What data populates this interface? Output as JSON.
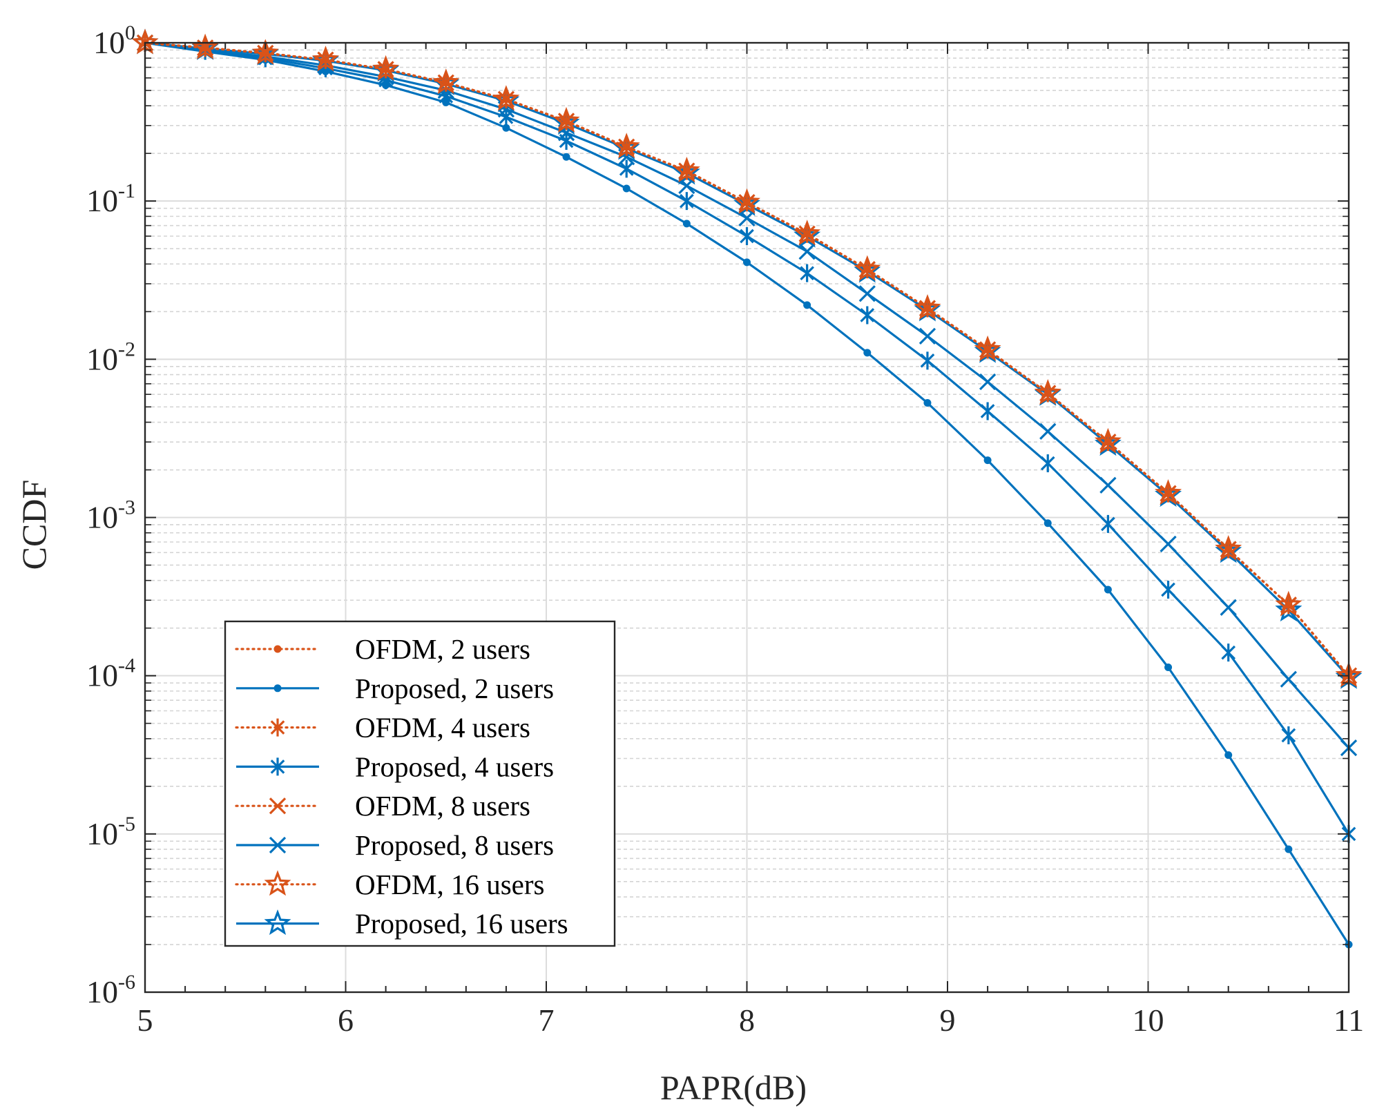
{
  "chart_data": {
    "type": "line",
    "title": "",
    "xlabel": "PAPR(dB)",
    "ylabel": "CCDF",
    "xlim": [
      5,
      11
    ],
    "ylim": [
      1e-06,
      1
    ],
    "yscale": "log",
    "grid": true,
    "minor_grid": true,
    "legend_position": "bottom-left",
    "x_ticks": [
      {
        "value": 5,
        "label": "5"
      },
      {
        "value": 6,
        "label": "6"
      },
      {
        "value": 7,
        "label": "7"
      },
      {
        "value": 8,
        "label": "8"
      },
      {
        "value": 9,
        "label": "9"
      },
      {
        "value": 10,
        "label": "10"
      },
      {
        "value": 11,
        "label": "11"
      }
    ],
    "y_ticks": [
      {
        "value": 1,
        "base": "10",
        "exp": "0"
      },
      {
        "value": 0.1,
        "base": "10",
        "exp": "-1"
      },
      {
        "value": 0.01,
        "base": "10",
        "exp": "-2"
      },
      {
        "value": 0.001,
        "base": "10",
        "exp": "-3"
      },
      {
        "value": 0.0001,
        "base": "10",
        "exp": "-4"
      },
      {
        "value": 1e-05,
        "base": "10",
        "exp": "-5"
      },
      {
        "value": 1e-06,
        "base": "10",
        "exp": "-6"
      }
    ],
    "x": [
      5.0,
      5.3,
      5.6,
      5.9,
      6.2,
      6.5,
      6.8,
      7.1,
      7.4,
      7.7,
      8.0,
      8.3,
      8.6,
      8.9,
      9.2,
      9.5,
      9.8,
      10.1,
      10.4,
      10.7,
      11.0
    ],
    "series": [
      {
        "name": "OFDM, 2 users",
        "color": "#D95319",
        "style": "dotted",
        "marker": "dot",
        "values": [
          1.0,
          0.93,
          0.86,
          0.78,
          0.68,
          0.56,
          0.44,
          0.32,
          0.22,
          0.155,
          0.098,
          0.062,
          0.037,
          0.021,
          0.0115,
          0.0061,
          0.003,
          0.00142,
          0.00063,
          0.00028,
          0.0001
        ]
      },
      {
        "name": "Proposed, 2 users",
        "color": "#0072BD",
        "style": "solid",
        "marker": "dot",
        "values": [
          1.0,
          0.88,
          0.78,
          0.66,
          0.54,
          0.42,
          0.29,
          0.19,
          0.12,
          0.072,
          0.041,
          0.022,
          0.011,
          0.0053,
          0.0023,
          0.00092,
          0.00035,
          0.000113,
          3.15e-05,
          8e-06,
          2e-06
        ]
      },
      {
        "name": "OFDM, 4 users",
        "color": "#D95319",
        "style": "dotted",
        "marker": "asterisk",
        "values": [
          1.0,
          0.93,
          0.86,
          0.78,
          0.68,
          0.56,
          0.44,
          0.32,
          0.22,
          0.155,
          0.098,
          0.062,
          0.037,
          0.021,
          0.0115,
          0.0061,
          0.003,
          0.00142,
          0.00063,
          0.00028,
          0.0001
        ]
      },
      {
        "name": "Proposed, 4 users",
        "color": "#0072BD",
        "style": "solid",
        "marker": "asterisk",
        "values": [
          1.0,
          0.89,
          0.8,
          0.69,
          0.58,
          0.46,
          0.34,
          0.24,
          0.16,
          0.1,
          0.06,
          0.035,
          0.019,
          0.0098,
          0.0047,
          0.0022,
          0.00091,
          0.00035,
          0.00014,
          4.2e-05,
          1e-05
        ]
      },
      {
        "name": "OFDM, 8 users",
        "color": "#D95319",
        "style": "dotted",
        "marker": "cross",
        "values": [
          1.0,
          0.93,
          0.86,
          0.78,
          0.68,
          0.56,
          0.44,
          0.32,
          0.22,
          0.155,
          0.098,
          0.062,
          0.037,
          0.021,
          0.0115,
          0.0061,
          0.003,
          0.00142,
          0.00063,
          0.00028,
          0.0001
        ]
      },
      {
        "name": "Proposed, 8 users",
        "color": "#0072BD",
        "style": "solid",
        "marker": "cross",
        "values": [
          1.0,
          0.9,
          0.82,
          0.72,
          0.61,
          0.5,
          0.38,
          0.27,
          0.19,
          0.125,
          0.078,
          0.048,
          0.026,
          0.014,
          0.0072,
          0.0035,
          0.0016,
          0.00068,
          0.00027,
          9.5e-05,
          3.5e-05
        ]
      },
      {
        "name": "OFDM, 16 users",
        "color": "#D95319",
        "style": "dotted",
        "marker": "star",
        "values": [
          1.0,
          0.93,
          0.86,
          0.78,
          0.68,
          0.56,
          0.44,
          0.32,
          0.22,
          0.155,
          0.098,
          0.062,
          0.037,
          0.021,
          0.0115,
          0.0061,
          0.003,
          0.00142,
          0.00063,
          0.00028,
          0.0001
        ]
      },
      {
        "name": "Proposed, 16 users",
        "color": "#0072BD",
        "style": "solid",
        "marker": "star",
        "values": [
          1.0,
          0.92,
          0.85,
          0.77,
          0.67,
          0.55,
          0.43,
          0.31,
          0.215,
          0.15,
          0.095,
          0.06,
          0.036,
          0.0205,
          0.0112,
          0.006,
          0.0029,
          0.00138,
          0.00061,
          0.00026,
          9.75e-05
        ]
      }
    ]
  }
}
